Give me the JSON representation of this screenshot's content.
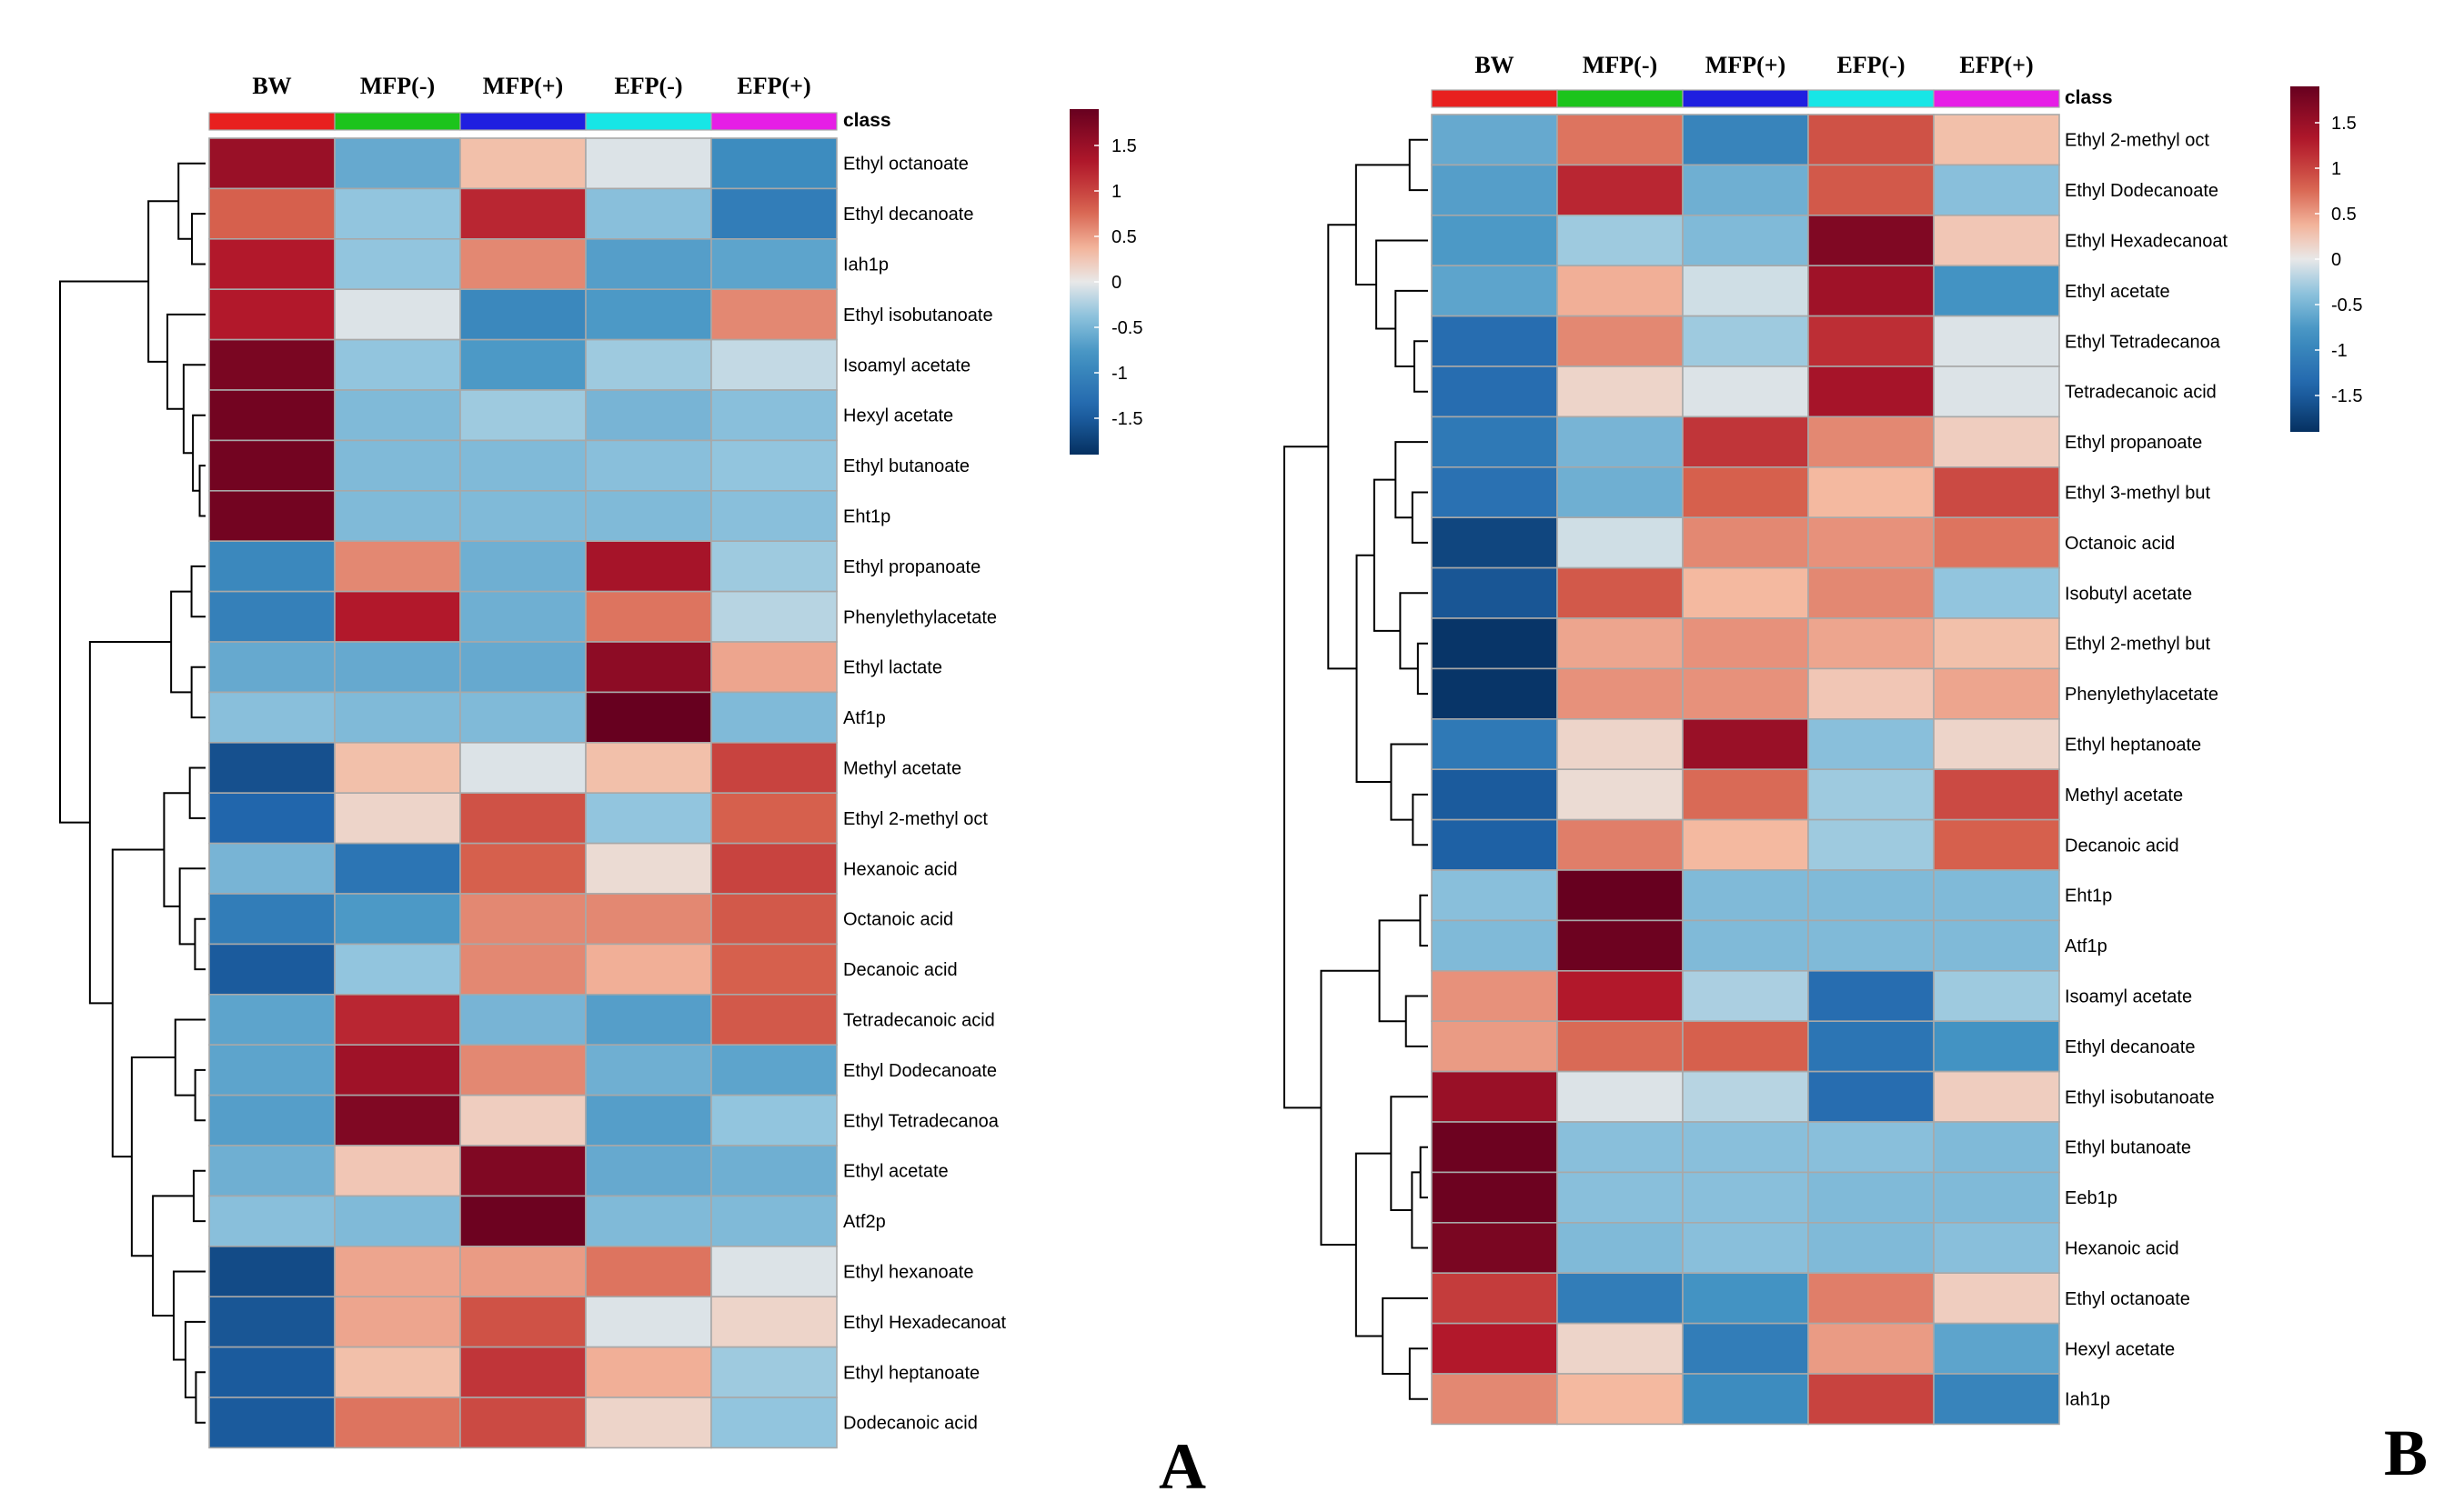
{
  "chart_data": [
    {
      "type": "heatmap",
      "panel": "A",
      "columns": [
        "BW",
        "MFP(-)",
        "MFP(+)",
        "EFP(-)",
        "EFP(+)"
      ],
      "class_label": "class",
      "class_colors": [
        "#e8201f",
        "#1cc41c",
        "#1f1fe0",
        "#17e6e6",
        "#e61ee6"
      ],
      "scale": {
        "min": -1.9,
        "max": 1.9,
        "ticks": [
          "1.5",
          "1",
          "0.5",
          "0",
          "-0.5",
          "-1",
          "-1.5"
        ],
        "tick_values": [
          1.5,
          1,
          0.5,
          0,
          -0.5,
          -1,
          -1.5
        ]
      },
      "rows": [
        {
          "label": "Ethyl octanoate",
          "values": [
            1.5,
            -0.6,
            0.3,
            -0.05,
            -0.9
          ]
        },
        {
          "label": "Ethyl decanoate",
          "values": [
            0.8,
            -0.35,
            1.2,
            -0.4,
            -1.1
          ]
        },
        {
          "label": "Iah1p",
          "values": [
            1.3,
            -0.35,
            0.6,
            -0.7,
            -0.65
          ]
        },
        {
          "label": "Ethyl isobutanoate",
          "values": [
            1.3,
            -0.05,
            -0.95,
            -0.75,
            0.6
          ]
        },
        {
          "label": "Isoamyl acetate",
          "values": [
            1.75,
            -0.35,
            -0.75,
            -0.3,
            -0.15
          ]
        },
        {
          "label": "Hexyl acetate",
          "values": [
            1.8,
            -0.45,
            -0.3,
            -0.5,
            -0.4
          ]
        },
        {
          "label": "Ethyl butanoate",
          "values": [
            1.8,
            -0.45,
            -0.45,
            -0.4,
            -0.35
          ]
        },
        {
          "label": "Eht1p",
          "values": [
            1.8,
            -0.45,
            -0.45,
            -0.45,
            -0.4
          ]
        },
        {
          "label": "Ethyl propanoate",
          "values": [
            -0.95,
            0.6,
            -0.55,
            1.4,
            -0.3
          ]
        },
        {
          "label": "Phenylethylacetate",
          "values": [
            -1.05,
            1.3,
            -0.55,
            0.7,
            -0.2
          ]
        },
        {
          "label": "Ethyl lactate",
          "values": [
            -0.6,
            -0.6,
            -0.6,
            1.6,
            0.45
          ]
        },
        {
          "label": "Atf1p",
          "values": [
            -0.4,
            -0.45,
            -0.45,
            1.9,
            -0.45
          ]
        },
        {
          "label": "Methyl acetate",
          "values": [
            -1.6,
            0.3,
            -0.05,
            0.3,
            1.0
          ]
        },
        {
          "label": "Ethyl 2-methyl oct",
          "values": [
            -1.4,
            0.15,
            0.9,
            -0.35,
            0.8
          ]
        },
        {
          "label": "Hexanoic acid",
          "values": [
            -0.5,
            -1.2,
            0.8,
            0.1,
            1.0
          ]
        },
        {
          "label": "Octanoic acid",
          "values": [
            -1.1,
            -0.75,
            0.6,
            0.6,
            0.85
          ]
        },
        {
          "label": "Decanoic acid",
          "values": [
            -1.5,
            -0.35,
            0.6,
            0.4,
            0.8
          ]
        },
        {
          "label": "Tetradecanoic acid",
          "values": [
            -0.65,
            1.2,
            -0.5,
            -0.7,
            0.85
          ]
        },
        {
          "label": "Ethyl Dodecanoate",
          "values": [
            -0.65,
            1.45,
            0.6,
            -0.55,
            -0.65
          ]
        },
        {
          "label": "Ethyl Tetradecanoa",
          "values": [
            -0.7,
            1.7,
            0.2,
            -0.7,
            -0.35
          ]
        },
        {
          "label": "Ethyl acetate",
          "values": [
            -0.55,
            0.25,
            1.7,
            -0.6,
            -0.55
          ]
        },
        {
          "label": "Atf2p",
          "values": [
            -0.4,
            -0.45,
            1.85,
            -0.45,
            -0.45
          ]
        },
        {
          "label": "Ethyl hexanoate",
          "values": [
            -1.65,
            0.45,
            0.5,
            0.7,
            -0.05
          ]
        },
        {
          "label": "Ethyl Hexadecanoat",
          "values": [
            -1.55,
            0.45,
            0.9,
            -0.05,
            0.15
          ]
        },
        {
          "label": "Ethyl heptanoate",
          "values": [
            -1.5,
            0.3,
            1.1,
            0.4,
            -0.3
          ]
        },
        {
          "label": "Dodecanoic acid",
          "values": [
            -1.5,
            0.7,
            0.95,
            0.15,
            -0.35
          ]
        }
      ]
    },
    {
      "type": "heatmap",
      "panel": "B",
      "columns": [
        "BW",
        "MFP(-)",
        "MFP(+)",
        "EFP(-)",
        "EFP(+)"
      ],
      "class_label": "class",
      "class_colors": [
        "#e8201f",
        "#1cc41c",
        "#1f1fe0",
        "#17e6e6",
        "#e61ee6"
      ],
      "scale": {
        "min": -1.9,
        "max": 1.9,
        "ticks": [
          "1.5",
          "1",
          "0.5",
          "0",
          "-0.5",
          "-1",
          "-1.5"
        ],
        "tick_values": [
          1.5,
          1,
          0.5,
          0,
          -0.5,
          -1,
          -1.5
        ]
      },
      "rows": [
        {
          "label": "Ethyl 2-methyl oct",
          "values": [
            -0.6,
            0.7,
            -1.0,
            0.9,
            0.3
          ]
        },
        {
          "label": "Ethyl Dodecanoate",
          "values": [
            -0.7,
            1.2,
            -0.55,
            0.85,
            -0.4
          ]
        },
        {
          "label": "Ethyl Hexadecanoat",
          "values": [
            -0.75,
            -0.3,
            -0.45,
            1.7,
            0.25
          ]
        },
        {
          "label": "Ethyl acetate",
          "values": [
            -0.65,
            0.4,
            -0.1,
            1.45,
            -0.8
          ]
        },
        {
          "label": "Ethyl Tetradecanoa",
          "values": [
            -1.3,
            0.6,
            -0.3,
            1.15,
            -0.05
          ]
        },
        {
          "label": "Tetradecanoic acid",
          "values": [
            -1.3,
            0.15,
            -0.05,
            1.4,
            -0.05
          ]
        },
        {
          "label": "Ethyl propanoate",
          "values": [
            -1.15,
            -0.5,
            1.1,
            0.6,
            0.2
          ]
        },
        {
          "label": "Ethyl 3-methyl but",
          "values": [
            -1.25,
            -0.55,
            0.8,
            0.35,
            0.95
          ]
        },
        {
          "label": "Octanoic acid",
          "values": [
            -1.7,
            -0.1,
            0.6,
            0.55,
            0.7
          ]
        },
        {
          "label": "Isobutyl acetate",
          "values": [
            -1.55,
            0.85,
            0.35,
            0.6,
            -0.35
          ]
        },
        {
          "label": "Ethyl 2-methyl but",
          "values": [
            -1.85,
            0.45,
            0.55,
            0.45,
            0.3
          ]
        },
        {
          "label": "Phenylethylacetate",
          "values": [
            -1.85,
            0.55,
            0.55,
            0.25,
            0.45
          ]
        },
        {
          "label": "Ethyl heptanoate",
          "values": [
            -1.15,
            0.15,
            1.5,
            -0.4,
            0.15
          ]
        },
        {
          "label": "Methyl acetate",
          "values": [
            -1.5,
            0.1,
            0.75,
            -0.3,
            0.95
          ]
        },
        {
          "label": "Decanoic acid",
          "values": [
            -1.45,
            0.65,
            0.35,
            -0.3,
            0.8
          ]
        },
        {
          "label": "Eht1p",
          "values": [
            -0.4,
            1.9,
            -0.45,
            -0.45,
            -0.45
          ]
        },
        {
          "label": "Atf1p",
          "values": [
            -0.45,
            1.85,
            -0.45,
            -0.45,
            -0.45
          ]
        },
        {
          "label": "Isoamyl acetate",
          "values": [
            0.55,
            1.3,
            -0.25,
            -1.3,
            -0.3
          ]
        },
        {
          "label": "Ethyl decanoate",
          "values": [
            0.5,
            0.75,
            0.8,
            -1.2,
            -0.8
          ]
        },
        {
          "label": "Ethyl isobutanoate",
          "values": [
            1.5,
            -0.05,
            -0.2,
            -1.3,
            0.2
          ]
        },
        {
          "label": "Ethyl butanoate",
          "values": [
            1.85,
            -0.4,
            -0.4,
            -0.4,
            -0.45
          ]
        },
        {
          "label": "Eeb1p",
          "values": [
            1.85,
            -0.4,
            -0.4,
            -0.45,
            -0.45
          ]
        },
        {
          "label": "Hexanoic acid",
          "values": [
            1.75,
            -0.45,
            -0.4,
            -0.45,
            -0.4
          ]
        },
        {
          "label": "Ethyl octanoate",
          "values": [
            1.05,
            -1.1,
            -0.8,
            0.65,
            0.2
          ]
        },
        {
          "label": "Hexyl acetate",
          "values": [
            1.3,
            0.15,
            -1.1,
            0.5,
            -0.65
          ]
        },
        {
          "label": "Iah1p",
          "values": [
            0.6,
            0.35,
            -0.9,
            1.0,
            -1.0
          ]
        }
      ]
    }
  ]
}
